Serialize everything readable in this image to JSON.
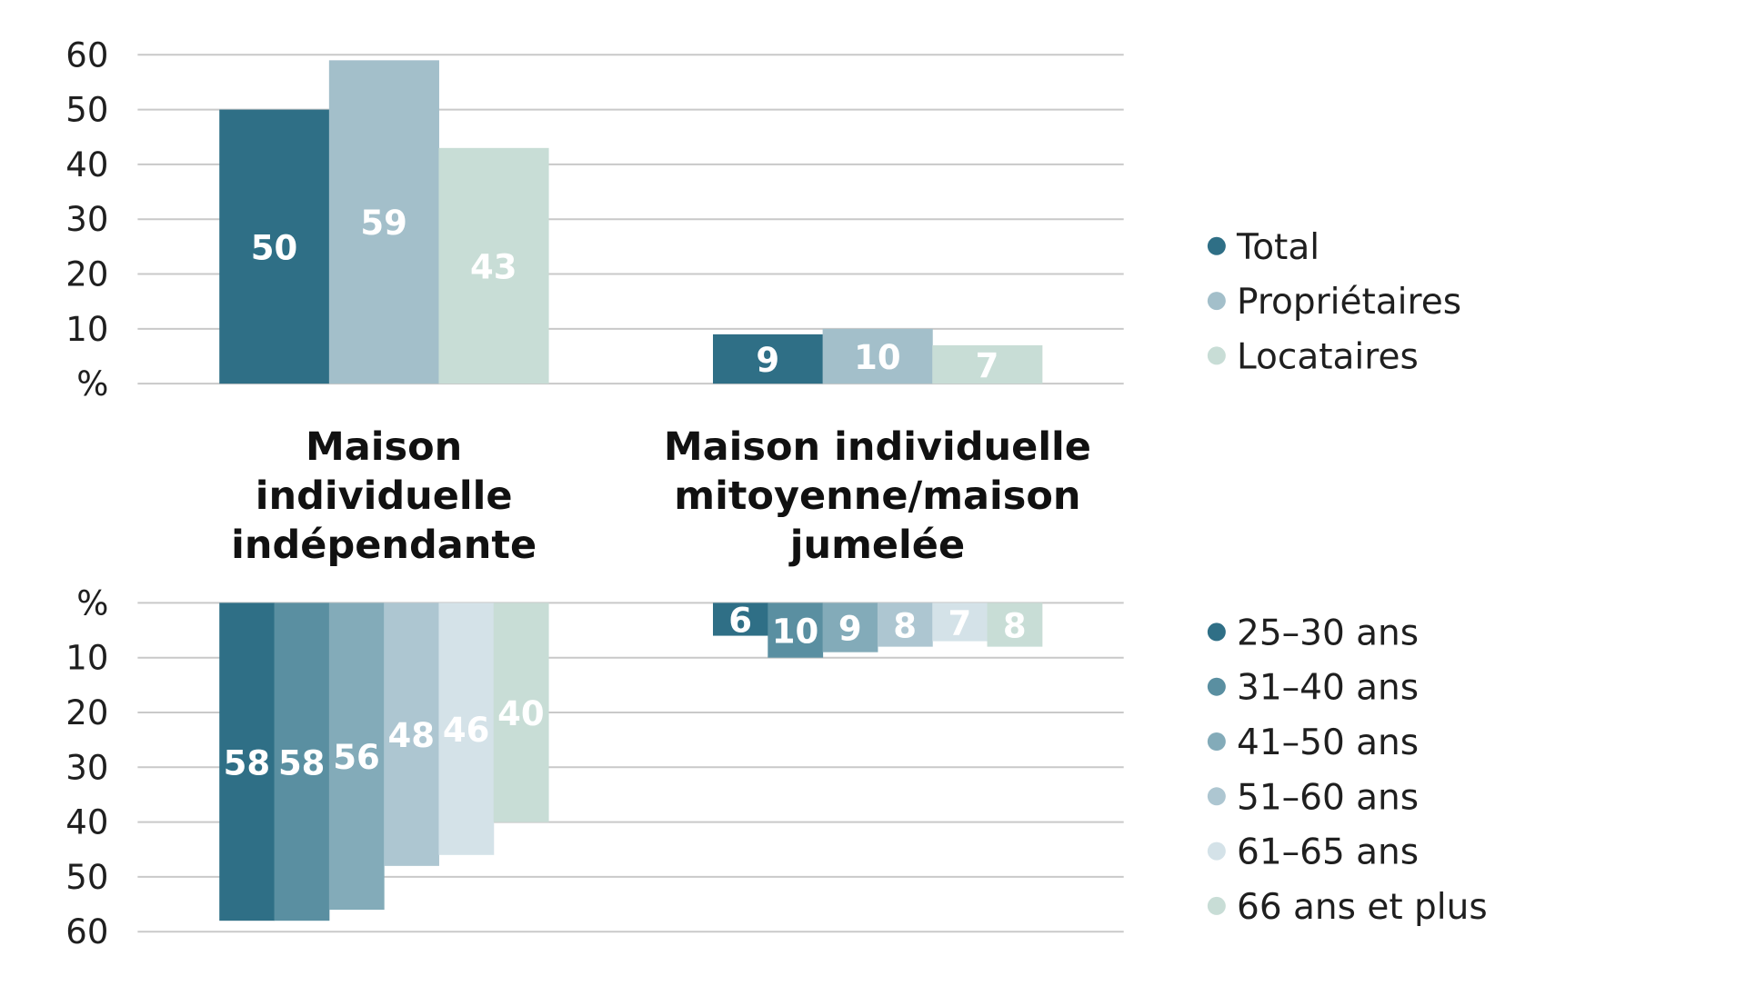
{
  "chart_data": [
    {
      "type": "bar",
      "direction": "up",
      "categories": [
        "Maison individuelle indépendante",
        "Maison individuelle mitoyenne/maison jumelée"
      ],
      "category_lines": [
        [
          "Maison",
          "individuelle",
          "indépendante"
        ],
        [
          "Maison individuelle",
          "mitoyenne/maison",
          "jumelée"
        ]
      ],
      "series": [
        {
          "name": "Total",
          "values": [
            50,
            9
          ],
          "color": "#2f6f86"
        },
        {
          "name": "Propriétaires",
          "values": [
            59,
            10
          ],
          "color": "#a3bfca"
        },
        {
          "name": "Locataires",
          "values": [
            43,
            7
          ],
          "color": "#c8ddd6"
        }
      ],
      "ylim": [
        0,
        60
      ],
      "yticks": [
        "%",
        "10",
        "20",
        "30",
        "40",
        "50",
        "60"
      ],
      "grid": true,
      "legend": "right"
    },
    {
      "type": "bar",
      "direction": "down",
      "categories": [
        "Maison individuelle indépendante",
        "Maison individuelle mitoyenne/maison jumelée"
      ],
      "series": [
        {
          "name": "25–30 ans",
          "values": [
            58,
            6
          ],
          "color": "#2f6f86"
        },
        {
          "name": "31–40 ans",
          "values": [
            58,
            10
          ],
          "color": "#5a8fa1"
        },
        {
          "name": "41–50 ans",
          "values": [
            56,
            9
          ],
          "color": "#83abb9"
        },
        {
          "name": "51–60 ans",
          "values": [
            48,
            8
          ],
          "color": "#adc6d1"
        },
        {
          "name": "61–65 ans",
          "values": [
            46,
            7
          ],
          "color": "#d4e2e8"
        },
        {
          "name": "66 ans et plus",
          "values": [
            40,
            8
          ],
          "color": "#c8ddd6"
        }
      ],
      "ylim": [
        0,
        60
      ],
      "yticks": [
        "%",
        "10",
        "20",
        "30",
        "40",
        "50",
        "60"
      ],
      "grid": true,
      "legend": "right"
    }
  ]
}
